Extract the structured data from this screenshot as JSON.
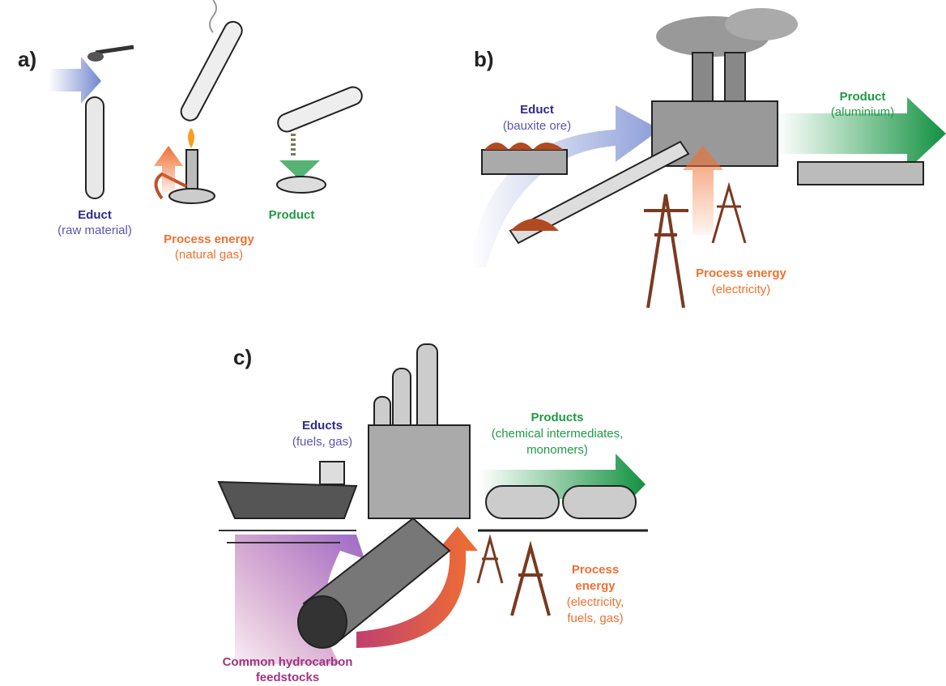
{
  "panels": [
    {
      "label": "a)",
      "educt": {
        "title": "Educt",
        "subtitle": "(raw material)"
      },
      "energy": {
        "title": "Process energy",
        "subtitle": "(natural gas)"
      },
      "product": {
        "title": "Product"
      }
    },
    {
      "label": "b)",
      "educt": {
        "title": "Educt",
        "subtitle": "(bauxite ore)"
      },
      "product": {
        "title": "Product",
        "subtitle": "(aluminium)"
      },
      "energy": {
        "title": "Process energy",
        "subtitle": "(electricity)"
      }
    },
    {
      "label": "c)",
      "educt": {
        "title": "Educts",
        "subtitle": "(fuels, gas)"
      },
      "product": {
        "title": "Products",
        "subtitle": [
          "(chemical intermediates,",
          "monomers)"
        ]
      },
      "energy": {
        "title": [
          "Process",
          "energy"
        ],
        "subtitle": [
          "(electricity,",
          "fuels, gas)"
        ]
      },
      "feedstock": [
        "Common hydrocarbon",
        "feedstocks"
      ]
    }
  ]
}
